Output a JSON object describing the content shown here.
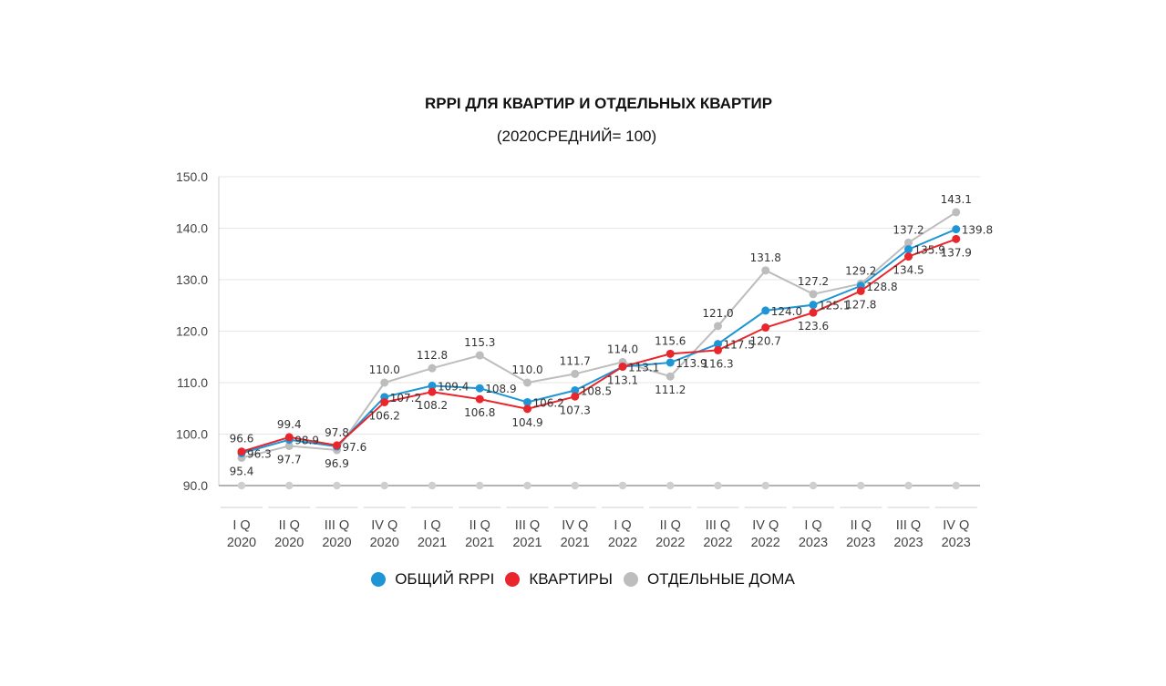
{
  "chart_data": {
    "type": "line",
    "title": "RPPI ДЛЯ КВАРТИР И ОТДЕЛЬНЫХ КВАРТИР",
    "subtitle": "(2020СРЕДНИЙ= 100)",
    "categories": [
      [
        "I Q",
        "2020"
      ],
      [
        "II Q",
        "2020"
      ],
      [
        "III Q",
        "2020"
      ],
      [
        "IV Q",
        "2020"
      ],
      [
        "I Q",
        "2021"
      ],
      [
        "II Q",
        "2021"
      ],
      [
        "III Q",
        "2021"
      ],
      [
        "IV Q",
        "2021"
      ],
      [
        "I Q",
        "2022"
      ],
      [
        "II Q",
        "2022"
      ],
      [
        "III Q",
        "2022"
      ],
      [
        "IV Q",
        "2022"
      ],
      [
        "I Q",
        "2023"
      ],
      [
        "II Q",
        "2023"
      ],
      [
        "III Q",
        "2023"
      ],
      [
        "IV Q",
        "2023"
      ]
    ],
    "ylim": [
      90,
      150
    ],
    "yticks": [
      "90.0",
      "100.0",
      "110.0",
      "120.0",
      "130.0",
      "140.0",
      "150.0"
    ],
    "grid": true,
    "legend_position": "bottom-center",
    "series": [
      {
        "name": "ОБЩИЙ RPPI",
        "color": "#1E96D6",
        "values": [
          96.3,
          98.9,
          97.6,
          107.2,
          109.4,
          108.9,
          106.2,
          108.5,
          113.1,
          113.9,
          117.5,
          124.0,
          125.1,
          128.8,
          135.9,
          139.8
        ],
        "labels": [
          "96.3",
          "98.9",
          "97.6",
          "107.2",
          "109.4",
          "108.9",
          "106.2",
          "108.5",
          "113.1",
          "113.9",
          "117.5",
          "124.0",
          "125.1",
          "128.8",
          "135.9",
          "139.8"
        ]
      },
      {
        "name": "КВАРТИРЫ",
        "color": "#E8262B",
        "values": [
          96.6,
          99.4,
          97.8,
          106.2,
          108.2,
          106.8,
          104.9,
          107.3,
          113.1,
          115.6,
          116.3,
          120.7,
          123.6,
          127.8,
          134.5,
          137.9
        ],
        "labels": [
          "96.6",
          "99.4",
          "97.8",
          "106.2",
          "108.2",
          "106.8",
          "104.9",
          "107.3",
          "113.1",
          "115.6",
          "116.3",
          "120.7",
          "123.6",
          "127.8",
          "134.5",
          "137.9"
        ]
      },
      {
        "name": "ОТДЕЛЬНЫЕ ДОМА",
        "color": "#BDBDBD",
        "values": [
          95.4,
          97.7,
          96.9,
          110.0,
          112.8,
          115.3,
          110.0,
          111.7,
          114.0,
          111.2,
          121.0,
          131.8,
          127.2,
          129.2,
          137.2,
          143.1
        ],
        "labels": [
          "95.4",
          "97.7",
          "96.9",
          "110.0",
          "112.8",
          "115.3",
          "110.0",
          "111.7",
          "114.0",
          "111.2",
          "121.0",
          "131.8",
          "127.2",
          "129.2",
          "137.2",
          "143.1"
        ]
      }
    ]
  }
}
